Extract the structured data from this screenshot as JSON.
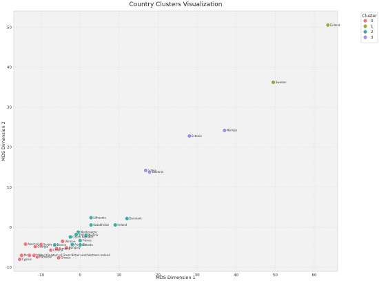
{
  "chart_data": {
    "type": "scatter",
    "title": "Country Clusters Visualization",
    "xlabel": "MDS Dimension 1",
    "ylabel": "MDS Dimension 2",
    "xlim": [
      -17,
      66
    ],
    "ylim": [
      -11,
      54
    ],
    "xticks": [
      -10,
      0,
      10,
      20,
      30,
      40,
      50,
      60
    ],
    "yticks": [
      -10,
      0,
      10,
      20,
      30,
      40,
      50
    ],
    "grid": true,
    "legend": {
      "title": "Cluster",
      "placement": "top-right outside",
      "entries": [
        "0",
        "1",
        "2",
        "3"
      ]
    },
    "colors": {
      "0": "#f0757a",
      "1": "#9fa83a",
      "2": "#3aaea0",
      "3": "#a08cec"
    },
    "points": [
      {
        "label": "Finland",
        "x": 63.5,
        "y": 50.5,
        "cluster": "1"
      },
      {
        "label": "Sweden",
        "x": 49.5,
        "y": 36.2,
        "cluster": "1"
      },
      {
        "label": "Norway",
        "x": 37.0,
        "y": 24.2,
        "cluster": "3"
      },
      {
        "label": "Estonia",
        "x": 28.0,
        "y": 22.8,
        "cluster": "3"
      },
      {
        "label": "Latvia",
        "x": 16.8,
        "y": 14.2,
        "cluster": "3"
      },
      {
        "label": "Slovenia",
        "x": 17.8,
        "y": 13.8,
        "cluster": "3"
      },
      {
        "label": "Lithuania",
        "x": 2.8,
        "y": 2.4,
        "cluster": "2"
      },
      {
        "label": "Denmark",
        "x": 12.0,
        "y": 2.2,
        "cluster": "2"
      },
      {
        "label": "Kazakhstan",
        "x": 2.8,
        "y": 0.6,
        "cluster": "2"
      },
      {
        "label": "Ireland",
        "x": 9.0,
        "y": 0.6,
        "cluster": "2"
      },
      {
        "label": "Montenegro",
        "x": -0.5,
        "y": -1.2,
        "cluster": "2"
      },
      {
        "label": "Slovakia",
        "x": -1.0,
        "y": -1.8,
        "cluster": "2"
      },
      {
        "label": "Austria",
        "x": 1.5,
        "y": -2.0,
        "cluster": "2"
      },
      {
        "label": "Czech Republic",
        "x": -2.5,
        "y": -2.4,
        "cluster": "2"
      },
      {
        "label": "France",
        "x": 0.0,
        "y": -3.3,
        "cluster": "2"
      },
      {
        "label": "Ukraine",
        "x": -4.5,
        "y": -3.5,
        "cluster": "0"
      },
      {
        "label": "Azerbaijan",
        "x": -14.0,
        "y": -4.2,
        "cluster": "0"
      },
      {
        "label": "Serbia",
        "x": -10.0,
        "y": -4.3,
        "cluster": "0"
      },
      {
        "label": "Bosnia",
        "x": -6.5,
        "y": -4.4,
        "cluster": "2"
      },
      {
        "label": "Australia",
        "x": -2.0,
        "y": -4.3,
        "cluster": "2"
      },
      {
        "label": "Canada",
        "x": 0.0,
        "y": -4.4,
        "cluster": "2"
      },
      {
        "label": "Georgia",
        "x": -11.5,
        "y": -4.8,
        "cluster": "0"
      },
      {
        "label": "Hungary",
        "x": -3.5,
        "y": -5.1,
        "cluster": "0"
      },
      {
        "label": "Armenia",
        "x": -6.0,
        "y": -5.3,
        "cluster": "0"
      },
      {
        "label": "Croatia",
        "x": -7.5,
        "y": -5.7,
        "cluster": "0"
      },
      {
        "label": "Malta",
        "x": -15.0,
        "y": -7.0,
        "cluster": "0"
      },
      {
        "label": "Albania",
        "x": -13.0,
        "y": -7.0,
        "cluster": "0"
      },
      {
        "label": "United Kingdom of Great Britain and Northern Ireland",
        "x": -11.8,
        "y": -7.0,
        "cluster": "0"
      },
      {
        "label": "Romania",
        "x": -11.0,
        "y": -7.4,
        "cluster": "0"
      },
      {
        "label": "Greece",
        "x": -5.5,
        "y": -7.6,
        "cluster": "0"
      },
      {
        "label": "Cyprus",
        "x": -15.5,
        "y": -8.0,
        "cluster": "0"
      }
    ]
  }
}
